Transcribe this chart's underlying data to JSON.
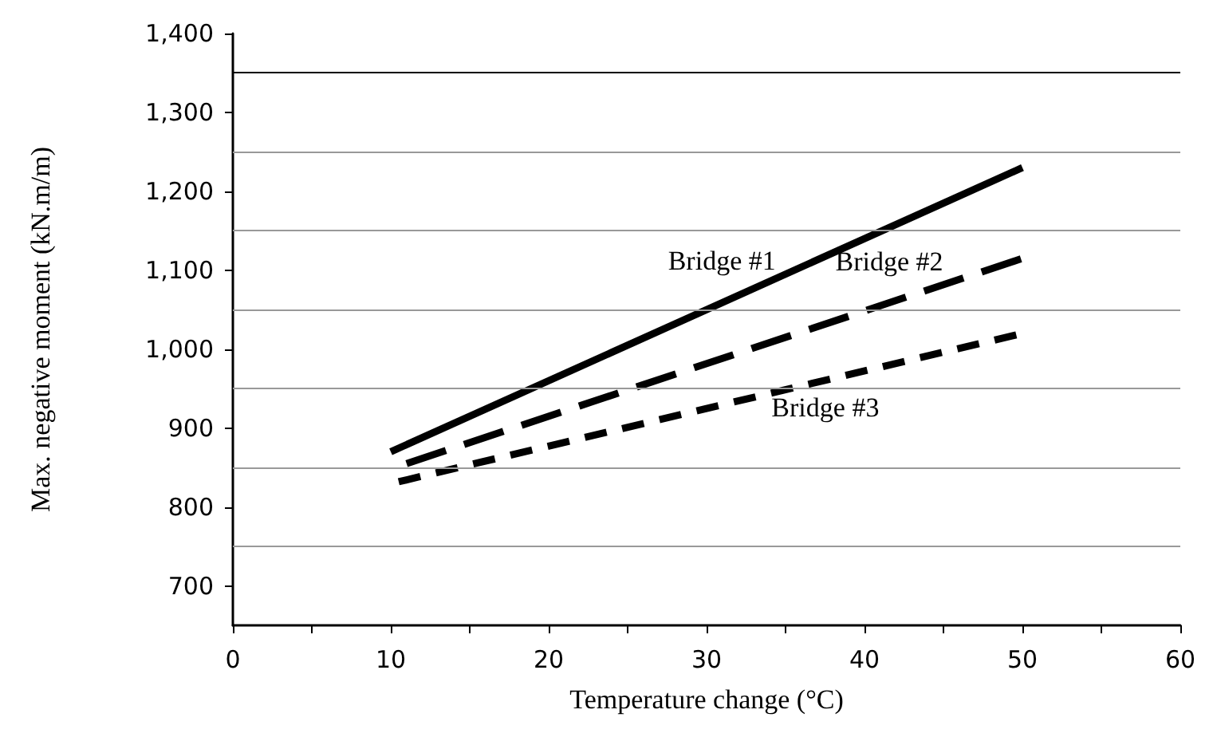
{
  "chart_data": {
    "type": "line",
    "xlabel": "Temperature change (°C)",
    "ylabel": "Max. negative moment (kN.m/m)",
    "xlim": [
      0,
      60
    ],
    "xticks": [
      0,
      {
        "value": 5,
        "label": null
      },
      10,
      {
        "value": 15,
        "label": null
      },
      20,
      {
        "value": 25,
        "label": null
      },
      30,
      {
        "value": 35,
        "label": null
      },
      40,
      {
        "value": 45,
        "label": null
      },
      50,
      {
        "value": 55,
        "label": null
      },
      60
    ],
    "ylim": [
      650,
      1400
    ],
    "yticks": [
      {
        "value": 700,
        "label": "700"
      },
      {
        "value": 800,
        "label": "800"
      },
      {
        "value": 900,
        "label": "900"
      },
      {
        "value": 1000,
        "label": "1,000"
      },
      {
        "value": 1100,
        "label": "1,100"
      },
      {
        "value": 1200,
        "label": "1,200"
      },
      {
        "value": 1300,
        "label": "1,300"
      },
      {
        "value": 1400,
        "label": "1,400"
      }
    ],
    "grid": false,
    "legend": false,
    "marker": "none",
    "ref_lines": [
      {
        "axis": "y",
        "value": 750,
        "color": "#999999"
      },
      {
        "axis": "y",
        "value": 850,
        "color": "#999999"
      },
      {
        "axis": "y",
        "value": 950,
        "color": "#999999"
      },
      {
        "axis": "y",
        "value": 1050,
        "color": "#999999"
      },
      {
        "axis": "y",
        "value": 1150,
        "color": "#999999"
      },
      {
        "axis": "y",
        "value": 1250,
        "color": "#999999"
      },
      {
        "axis": "y",
        "value": 1350,
        "color": "#000000"
      }
    ],
    "series": [
      {
        "name": "Bridge #1",
        "color": "#000000",
        "line_style": "solid",
        "x": [
          10,
          50
        ],
        "values": [
          870,
          1230
        ]
      },
      {
        "name": "Bridge #2",
        "color": "#000000",
        "line_style": "dashed",
        "x": [
          11,
          50
        ],
        "values": [
          855,
          1115
        ]
      },
      {
        "name": "Bridge #3",
        "color": "#000000",
        "line_style": "dashed",
        "x": [
          10.5,
          50
        ],
        "values": [
          832,
          1020
        ]
      }
    ]
  }
}
